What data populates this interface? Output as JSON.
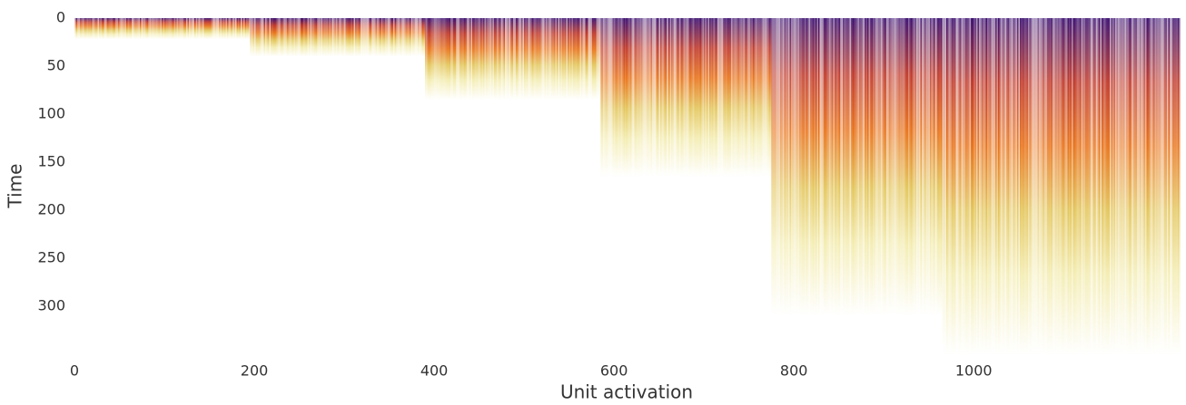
{
  "chart_data": {
    "type": "heatmap",
    "x_label": "Unit activation",
    "y_label": "Time",
    "xlim": [
      0,
      1230
    ],
    "ylim": [
      351,
      0
    ],
    "xticks": [
      0,
      200,
      400,
      600,
      800,
      1000
    ],
    "yticks": [
      0,
      50,
      100,
      150,
      200,
      250,
      300
    ],
    "colormap": [
      "#3b0f70",
      "#c0392b",
      "#e8731a",
      "#e3c55a",
      "#f3ecb0"
    ],
    "blocks": [
      {
        "x": [
          0,
          195
        ],
        "value": 22
      },
      {
        "x": [
          195,
          390
        ],
        "value": 40
      },
      {
        "x": [
          390,
          585
        ],
        "value": 85
      },
      {
        "x": [
          585,
          775
        ],
        "value": 165
      },
      {
        "x": [
          775,
          965
        ],
        "value": 310
      },
      {
        "x": [
          965,
          1230
        ],
        "value": 351
      }
    ]
  }
}
